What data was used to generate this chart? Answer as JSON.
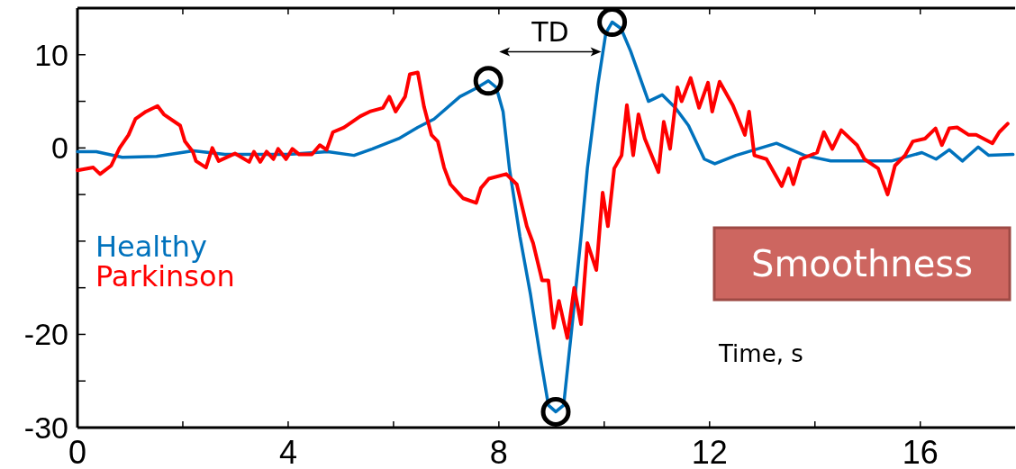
{
  "chart_data": {
    "type": "line",
    "xlabel": "Time, s",
    "xlim": [
      0,
      17.8
    ],
    "xticks": [
      0,
      {
        "value": 2,
        "label": null
      },
      4,
      {
        "value": 6,
        "label": null
      },
      8,
      {
        "value": 10,
        "label": null
      },
      12,
      {
        "value": 14,
        "label": null
      },
      16
    ],
    "ylim": [
      -30,
      15
    ],
    "yticks": [
      -30,
      {
        "value": -25,
        "label": null
      },
      -20,
      {
        "value": -15,
        "label": null
      },
      {
        "value": -10,
        "label": null
      },
      {
        "value": -5,
        "label": null
      },
      0,
      {
        "value": 5,
        "label": null
      },
      10
    ],
    "grid": false,
    "legend": "left",
    "line_style": "solid",
    "series": [
      {
        "name": "Healthy",
        "color": "#0072bd",
        "x": [
          0,
          0.36,
          0.85,
          1.5,
          2.2,
          2.8,
          4.0,
          4.75,
          5.25,
          5.6,
          6.1,
          6.46,
          6.77,
          7.26,
          7.57,
          7.8,
          7.95,
          8.08,
          8.2,
          8.4,
          8.6,
          8.78,
          8.94,
          9.08,
          9.23,
          9.4,
          9.56,
          9.68,
          9.88,
          10.03,
          10.15,
          10.32,
          10.5,
          10.84,
          11.1,
          11.35,
          11.6,
          11.9,
          12.1,
          12.5,
          13.27,
          13.8,
          14.3,
          15.45,
          16.03,
          16.3,
          16.55,
          16.8,
          17.1,
          17.3,
          17.76
        ],
        "values": [
          -0.4,
          -0.4,
          -1.0,
          -0.9,
          -0.3,
          -0.7,
          -0.7,
          -0.4,
          -0.8,
          -0.1,
          1.0,
          2.2,
          3.1,
          5.5,
          6.4,
          7.2,
          6.5,
          3.9,
          -2.2,
          -9.5,
          -15.7,
          -22.2,
          -27.6,
          -28.3,
          -27.6,
          -18.5,
          -9.5,
          -2.2,
          6.8,
          12.3,
          13.5,
          12.8,
          10.4,
          5.0,
          5.7,
          4.3,
          2.4,
          -1.2,
          -1.7,
          -0.8,
          0.5,
          -0.8,
          -1.4,
          -1.4,
          -0.5,
          -1.2,
          -0.2,
          -1.4,
          0.1,
          -0.8,
          -0.7
        ]
      },
      {
        "name": "Parkinson",
        "color": "#ff0000",
        "x": [
          0,
          0.3,
          0.43,
          0.64,
          0.8,
          0.97,
          1.1,
          1.3,
          1.52,
          1.64,
          1.95,
          2.04,
          2.19,
          2.25,
          2.44,
          2.56,
          2.68,
          2.99,
          3.26,
          3.35,
          3.47,
          3.59,
          3.72,
          3.81,
          3.96,
          4.08,
          4.21,
          4.45,
          4.6,
          4.73,
          4.85,
          5.06,
          5.37,
          5.55,
          5.8,
          5.92,
          6.04,
          6.22,
          6.31,
          6.46,
          6.58,
          6.72,
          6.84,
          6.96,
          7.08,
          7.32,
          7.57,
          7.66,
          7.81,
          8.14,
          8.34,
          8.53,
          8.65,
          8.82,
          8.94,
          9.04,
          9.14,
          9.3,
          9.43,
          9.56,
          9.68,
          9.85,
          9.97,
          10.07,
          10.19,
          10.33,
          10.43,
          10.55,
          10.65,
          10.77,
          11.03,
          11.13,
          11.25,
          11.39,
          11.47,
          11.64,
          11.8,
          11.97,
          12.05,
          12.19,
          12.44,
          12.67,
          12.75,
          12.85,
          13.08,
          13.37,
          13.5,
          13.59,
          13.73,
          14.04,
          14.17,
          14.33,
          14.5,
          14.8,
          14.94,
          15.2,
          15.38,
          15.52,
          15.71,
          15.86,
          16.09,
          16.29,
          16.41,
          16.55,
          16.7,
          16.92,
          17.06,
          17.37,
          17.5,
          17.66
        ],
        "values": [
          -2.4,
          -2.1,
          -2.8,
          -1.9,
          0,
          1.4,
          3.1,
          3.9,
          4.5,
          3.6,
          2.4,
          0.7,
          -0.4,
          -1.4,
          -2.1,
          0,
          -1.4,
          -0.6,
          -1.5,
          -0.4,
          -1.5,
          -0.4,
          -1.2,
          -0.1,
          -1.2,
          -0.1,
          -0.7,
          -0.7,
          0.3,
          -0.2,
          1.7,
          2.2,
          3.4,
          3.9,
          4.3,
          5.5,
          3.9,
          5.5,
          7.9,
          8.1,
          4.4,
          1.4,
          0.7,
          -2.1,
          -3.9,
          -5.4,
          -5.9,
          -4.3,
          -3.3,
          -2.8,
          -3.9,
          -8.4,
          -10.2,
          -14.2,
          -14.2,
          -19.3,
          -16.4,
          -20.4,
          -15.0,
          -18.9,
          -10.2,
          -13.1,
          -4.8,
          -8.4,
          -2.2,
          -0.8,
          4.6,
          -0.8,
          3.6,
          1.0,
          -2.6,
          2.8,
          -0.1,
          6.5,
          5.0,
          7.5,
          4.3,
          7.0,
          3.9,
          7.1,
          4.6,
          1.4,
          3.9,
          -0.8,
          -1.2,
          -4.1,
          -2.2,
          -3.9,
          -1.2,
          -0.5,
          1.7,
          -0.1,
          1.9,
          0.3,
          -1.2,
          -2.2,
          -5.0,
          -1.9,
          -0.8,
          0.7,
          1.0,
          2.1,
          0.3,
          2.1,
          2.2,
          1.4,
          1.4,
          0.5,
          1.7,
          2.6
        ]
      },
      {
        "type": "scatter",
        "color": "#000000",
        "marker": "circle",
        "x": [
          7.8,
          9.08,
          10.15
        ],
        "values": [
          7.2,
          -28.3,
          13.5
        ]
      }
    ],
    "annotations": [
      "TD",
      "Smoothness"
    ]
  }
}
